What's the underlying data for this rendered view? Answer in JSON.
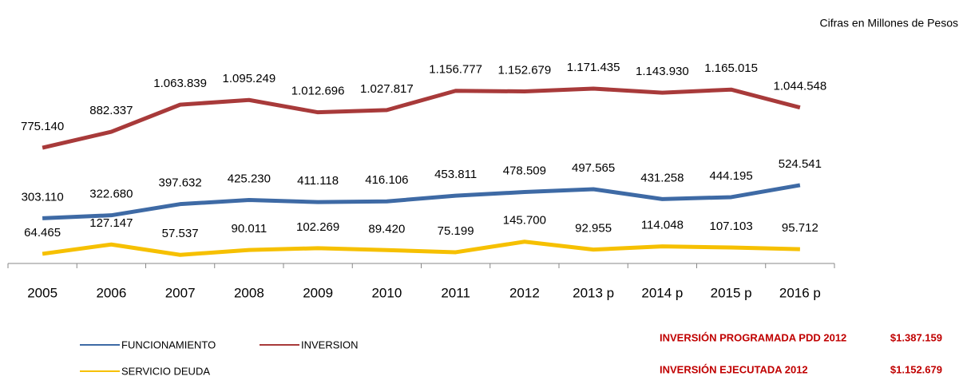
{
  "chart_data": {
    "type": "line",
    "subtitle": "Cifras en Millones de Pesos",
    "categories": [
      "2005",
      "2006",
      "2007",
      "2008",
      "2009",
      "2010",
      "2011",
      "2012",
      "2013 p",
      "2014 p",
      "2015 p",
      "2016 p"
    ],
    "series": [
      {
        "name": "FUNCIONAMIENTO",
        "color": "#3e6aa5",
        "values": [
          303110,
          322680,
          397632,
          425230,
          411118,
          416106,
          453811,
          478509,
          497565,
          431258,
          444195,
          524541
        ],
        "value_labels": [
          "303.110",
          "322.680",
          "397.632",
          "425.230",
          "411.118",
          "416.106",
          "453.811",
          "478.509",
          "497.565",
          "431.258",
          "444.195",
          "524.541"
        ]
      },
      {
        "name": "INVERSION",
        "color": "#a83a3a",
        "values": [
          775140,
          882337,
          1063839,
          1095249,
          1012696,
          1027817,
          1156777,
          1152679,
          1171435,
          1143930,
          1165015,
          1044548
        ],
        "value_labels": [
          "775.140",
          "882.337",
          "1.063.839",
          "1.095.249",
          "1.012.696",
          "1.027.817",
          "1.156.777",
          "1.152.679",
          "1.171.435",
          "1.143.930",
          "1.165.015",
          "1.044.548"
        ]
      },
      {
        "name": "SERVICIO DEUDA",
        "color": "#f6c000",
        "values": [
          64465,
          127147,
          57537,
          90011,
          102269,
          89420,
          75199,
          145700,
          92955,
          114048,
          107103,
          95712
        ],
        "value_labels": [
          "64.465",
          "127.147",
          "57.537",
          "90.011",
          "102.269",
          "89.420",
          "75.199",
          "145.700",
          "92.955",
          "114.048",
          "107.103",
          "95.712"
        ]
      }
    ],
    "annotations": [
      {
        "label": "INVERSIÓN PROGRAMADA PDD 2012",
        "amount": "$1.387.159"
      },
      {
        "label": "INVERSIÓN EJECUTADA 2012",
        "amount": "$1.152.679"
      }
    ]
  }
}
